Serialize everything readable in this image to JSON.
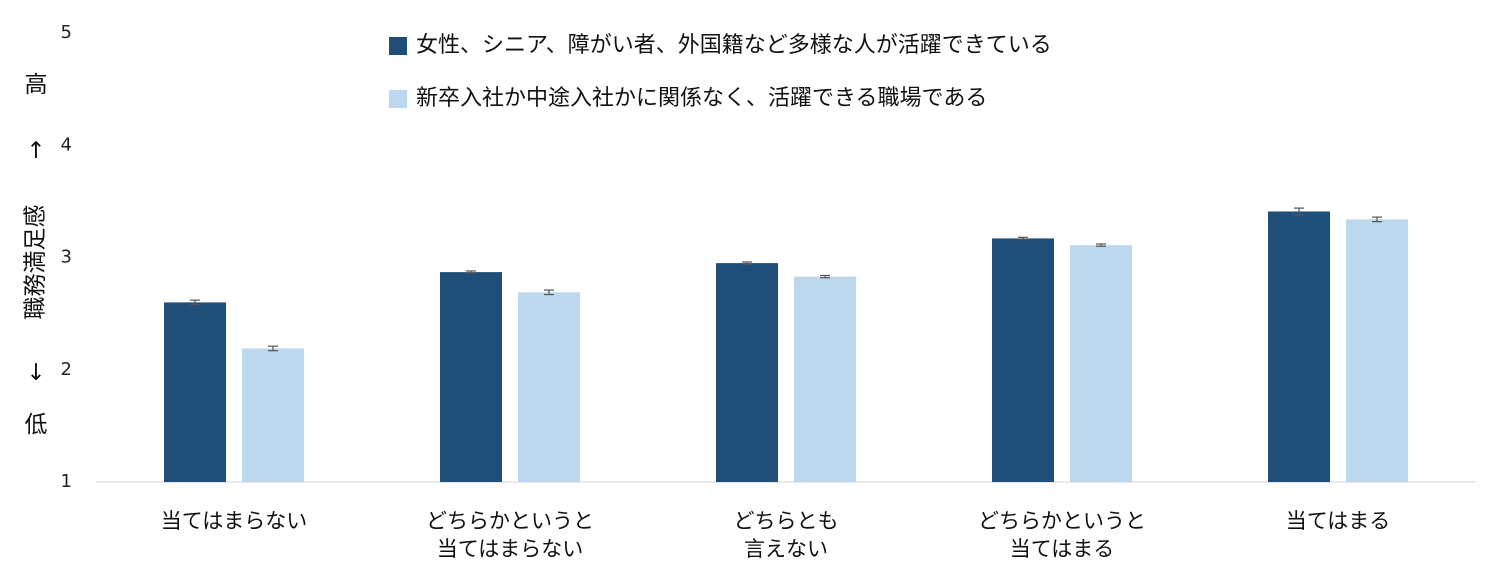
{
  "chart_data": {
    "type": "bar",
    "ylim": [
      1,
      5
    ],
    "yticks": [
      1,
      2,
      3,
      4,
      5
    ],
    "ylabel": {
      "high": "高",
      "arrow_up": "↑",
      "main": "職務満足感",
      "arrow_down": "↓",
      "low": "低"
    },
    "legend_position": "top-center",
    "categories": [
      [
        "当てはまらない"
      ],
      [
        "どちらかというと",
        "当てはまらない"
      ],
      [
        "どちらとも",
        "言えない"
      ],
      [
        "どちらかというと",
        "当てはまる"
      ],
      [
        "当てはまる"
      ]
    ],
    "series": [
      {
        "name": "女性、シニア、障がい者、外国籍など多様な人が活躍できている",
        "color": "#1f4e79",
        "values": [
          2.6,
          2.87,
          2.95,
          3.17,
          3.41
        ],
        "errors": [
          0.02,
          0.01,
          0.01,
          0.01,
          0.03
        ]
      },
      {
        "name": "新卒入社か中途入社かに関係なく、活躍できる職場である",
        "color": "#bdd7ee",
        "values": [
          2.19,
          2.69,
          2.83,
          3.11,
          3.34
        ],
        "errors": [
          0.02,
          0.02,
          0.01,
          0.01,
          0.02
        ]
      }
    ],
    "grid": false
  }
}
